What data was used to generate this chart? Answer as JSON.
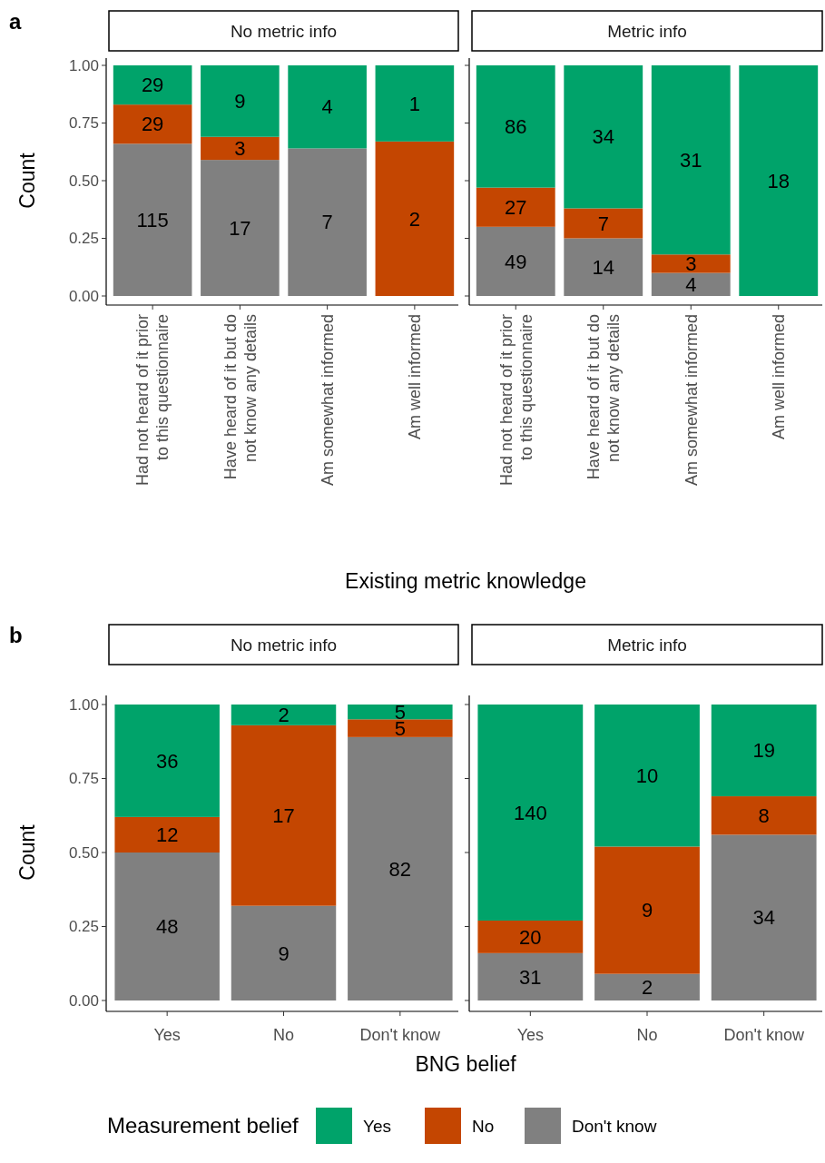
{
  "chart_data": [
    {
      "type": "bar",
      "stacked": true,
      "title": "No metric info",
      "xlabel": "Existing metric knowledge",
      "ylabel": "Count",
      "categories": [
        "Had not heard of it prior to this questionnaire",
        "Have heard of it but do not know any details",
        "Am somewhat informed",
        "Am well informed"
      ],
      "ylim": [
        0,
        1
      ],
      "yticks": [
        {
          "value": 0,
          "label": "0.00"
        },
        {
          "value": 0.25,
          "label": "0.25"
        },
        {
          "value": 0.5,
          "label": "0.50"
        },
        {
          "value": 0.75,
          "label": "0.75"
        },
        {
          "value": 1,
          "label": "1.00"
        }
      ],
      "annotations": [
        "a",
        "115",
        "29",
        "29",
        "17",
        "3",
        "9",
        "7",
        "4",
        "2",
        "1"
      ],
      "series": [
        {
          "color": "#808080",
          "values": [
            0.66,
            0.59,
            0.64,
            0
          ]
        },
        {
          "color": "#c44601",
          "values": [
            0.17,
            0.1,
            0,
            0.67
          ]
        },
        {
          "color": "#00a36a",
          "values": [
            0.17,
            0.31,
            0.36,
            0.33
          ]
        }
      ]
    },
    {
      "type": "bar",
      "stacked": true,
      "title": "Metric info",
      "tick_labels": "x",
      "categories": [
        "Had not heard of it prior to this questionnaire",
        "Have heard of it but do not know any details",
        "Am somewhat informed",
        "Am well informed"
      ],
      "ylim": [
        0,
        1
      ],
      "yticks": [
        0,
        0.25,
        0.5,
        0.75,
        1
      ],
      "annotations": [
        "49",
        "27",
        "86",
        "14",
        "7",
        "34",
        "4",
        "3",
        "31",
        "18"
      ],
      "series": [
        {
          "color": "#808080",
          "values": [
            0.3,
            0.25,
            0.1,
            0
          ]
        },
        {
          "color": "#c44601",
          "values": [
            0.17,
            0.13,
            0.08,
            0
          ]
        },
        {
          "color": "#00a36a",
          "values": [
            0.53,
            0.62,
            0.82,
            1
          ]
        }
      ]
    },
    {
      "type": "bar",
      "stacked": true,
      "title": "No metric info",
      "xlabel": "BNG belief",
      "ylabel": "Count",
      "categories": [
        "Yes",
        "No",
        "Don't know"
      ],
      "ylim": [
        0,
        1
      ],
      "yticks": [
        {
          "value": 0,
          "label": "0.00"
        },
        {
          "value": 0.25,
          "label": "0.25"
        },
        {
          "value": 0.5,
          "label": "0.50"
        },
        {
          "value": 0.75,
          "label": "0.75"
        },
        {
          "value": 1,
          "label": "1.00"
        }
      ],
      "annotations": [
        "b",
        "48",
        "12",
        "36",
        "9",
        "17",
        "2",
        "82",
        "5",
        "5"
      ],
      "series": [
        {
          "color": "#808080",
          "values": [
            0.5,
            0.32,
            0.89
          ]
        },
        {
          "color": "#c44601",
          "values": [
            0.12,
            0.61,
            0.06
          ]
        },
        {
          "color": "#00a36a",
          "values": [
            0.38,
            0.07,
            0.05
          ]
        }
      ]
    },
    {
      "type": "bar",
      "stacked": true,
      "title": "Metric info",
      "tick_labels": "x",
      "legend": "bottom",
      "legend_title": "Measurement belief",
      "categories": [
        "Yes",
        "No",
        "Don't know"
      ],
      "ylim": [
        0,
        1
      ],
      "yticks": [
        0,
        0.25,
        0.5,
        0.75,
        1
      ],
      "annotations": [
        "31",
        "20",
        "140",
        "2",
        "9",
        "10",
        "34",
        "8",
        "19"
      ],
      "series": [
        {
          "name": "Don't know",
          "color": "#808080",
          "values": [
            0.16,
            0.09,
            0.56
          ]
        },
        {
          "name": "No",
          "color": "#c44601",
          "values": [
            0.11,
            0.43,
            0.13
          ]
        },
        {
          "name": "Yes",
          "color": "#00a36a",
          "values": [
            0.73,
            0.48,
            0.31
          ]
        }
      ]
    }
  ]
}
